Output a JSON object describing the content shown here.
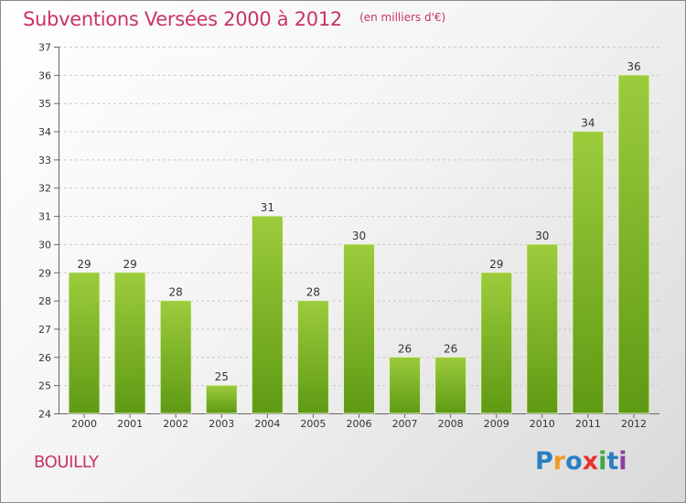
{
  "header": {
    "title": "Subventions Versées 2000 à 2012",
    "subtitle": "(en milliers d'€)"
  },
  "footer": {
    "commune": "BOUILLY",
    "logo_text": "Proxiti",
    "logo_colors": [
      "#2a7fc1",
      "#f29a1f",
      "#2a7fc1",
      "#e6332a",
      "#3aa845",
      "#2a7fc1",
      "#8c3fa0"
    ]
  },
  "chart_data": {
    "type": "bar",
    "title": "Subventions Versées 2000 à 2012",
    "subtitle": "(en milliers d'€)",
    "categories": [
      "2000",
      "2001",
      "2002",
      "2003",
      "2004",
      "2005",
      "2006",
      "2007",
      "2008",
      "2009",
      "2010",
      "2011",
      "2012"
    ],
    "values": [
      29,
      29,
      28,
      25,
      31,
      28,
      30,
      26,
      26,
      29,
      30,
      34,
      36
    ],
    "ylim": [
      24,
      37
    ],
    "yticks": [
      24,
      25,
      26,
      27,
      28,
      29,
      30,
      31,
      32,
      33,
      34,
      35,
      36,
      37
    ],
    "grid": "horizontal-dashed",
    "bar_color_top": "#9ccc3c",
    "bar_color_bottom": "#5f9a14",
    "label_color": "#333333"
  }
}
